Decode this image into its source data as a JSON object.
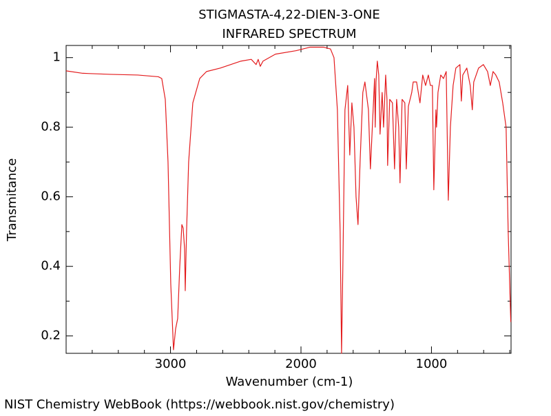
{
  "chart_data": {
    "type": "line",
    "title": "STIGMASTA-4,22-DIEN-3-ONE",
    "subtitle": "INFRARED SPECTRUM",
    "x_label": "Wavenumber (cm-1)",
    "y_label": "Transmitance",
    "footer": "NIST Chemistry WebBook (https://webbook.nist.gov/chemistry)",
    "color": "#e31a1c",
    "xlim": [
      3800,
      390
    ],
    "ylim": [
      0.15,
      1.035
    ],
    "xticks": [
      3000,
      2000,
      1000
    ],
    "yticks": [
      {
        "value": 0.2,
        "label": "0.2"
      },
      {
        "value": 0.4,
        "label": "0.4"
      },
      {
        "value": 0.6,
        "label": "0.6"
      },
      {
        "value": 0.8,
        "label": "0.8"
      },
      1
    ],
    "xminorticks": [
      3600,
      3400,
      3200,
      2800,
      2600,
      2400,
      2200,
      1800,
      1600,
      1400,
      1200,
      800,
      600,
      400
    ],
    "yminorticks": [
      0.3,
      0.5,
      0.7,
      0.9
    ],
    "x": [
      3800,
      3673,
      3462,
      3251,
      3093,
      3067,
      3040,
      3019,
      2998,
      2977,
      2961,
      2945,
      2929,
      2913,
      2903,
      2892,
      2887,
      2877,
      2861,
      2829,
      2776,
      2724,
      2618,
      2460,
      2381,
      2344,
      2328,
      2312,
      2291,
      2196,
      2037,
      1932,
      1826,
      1774,
      1747,
      1721,
      1700,
      1689,
      1679,
      1663,
      1642,
      1626,
      1610,
      1594,
      1578,
      1563,
      1547,
      1526,
      1510,
      1483,
      1468,
      1447,
      1436,
      1431,
      1425,
      1415,
      1404,
      1394,
      1378,
      1367,
      1351,
      1341,
      1336,
      1320,
      1299,
      1283,
      1267,
      1251,
      1241,
      1225,
      1204,
      1193,
      1177,
      1151,
      1140,
      1114,
      1088,
      1067,
      1045,
      1024,
      1008,
      993,
      982,
      966,
      961,
      950,
      929,
      908,
      887,
      871,
      855,
      834,
      813,
      782,
      771,
      760,
      729,
      703,
      687,
      676,
      639,
      602,
      570,
      549,
      528,
      507,
      481,
      454,
      428,
      412,
      392
    ],
    "values": [
      0.962,
      0.955,
      0.952,
      0.95,
      0.945,
      0.94,
      0.88,
      0.7,
      0.35,
      0.16,
      0.22,
      0.25,
      0.4,
      0.52,
      0.51,
      0.45,
      0.33,
      0.5,
      0.7,
      0.87,
      0.94,
      0.96,
      0.97,
      0.99,
      0.995,
      0.98,
      0.995,
      0.975,
      0.99,
      1.01,
      1.02,
      1.03,
      1.03,
      1.025,
      1.0,
      0.85,
      0.5,
      0.15,
      0.4,
      0.85,
      0.92,
      0.72,
      0.87,
      0.8,
      0.6,
      0.52,
      0.7,
      0.9,
      0.93,
      0.85,
      0.68,
      0.85,
      0.94,
      0.8,
      0.93,
      0.99,
      0.95,
      0.78,
      0.9,
      0.8,
      0.95,
      0.88,
      0.69,
      0.88,
      0.87,
      0.68,
      0.88,
      0.8,
      0.64,
      0.88,
      0.87,
      0.68,
      0.86,
      0.9,
      0.93,
      0.93,
      0.87,
      0.95,
      0.92,
      0.95,
      0.92,
      0.92,
      0.62,
      0.85,
      0.8,
      0.9,
      0.95,
      0.94,
      0.96,
      0.59,
      0.8,
      0.92,
      0.97,
      0.98,
      0.875,
      0.95,
      0.97,
      0.92,
      0.85,
      0.93,
      0.97,
      0.98,
      0.96,
      0.92,
      0.96,
      0.95,
      0.93,
      0.87,
      0.8,
      0.5,
      0.24
    ]
  }
}
